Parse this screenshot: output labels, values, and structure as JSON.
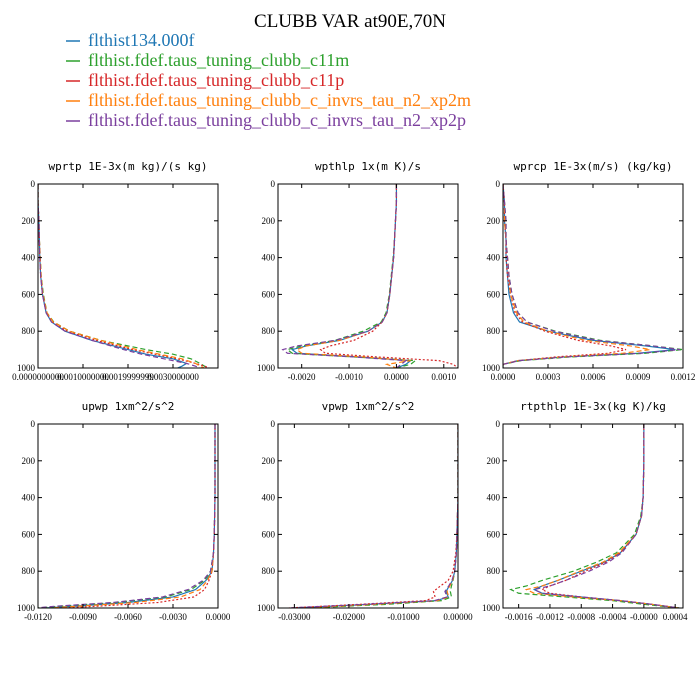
{
  "figure": {
    "title": "CLUBB VAR at90E,70N",
    "series": [
      {
        "name": "flthist134.000f",
        "color": "#1f77b4",
        "dash": "solid"
      },
      {
        "name": "flthist.fdef.taus_tuning_clubb_c11m",
        "color": "#2ca02c",
        "dash": "dashed"
      },
      {
        "name": "flthist.fdef.taus_tuning_clubb_c11p",
        "color": "#d62728",
        "dash": "dotted"
      },
      {
        "name": "flthist.fdef.taus_tuning_clubb_c_invrs_tau_n2_xp2m",
        "color": "#ff7f0e",
        "dash": "dashed"
      },
      {
        "name": "flthist.fdef.taus_tuning_clubb_c_invrs_tau_n2_xp2p",
        "color": "#7b3f9e",
        "dash": "dashed"
      }
    ]
  },
  "chart_data": [
    {
      "type": "line",
      "title": "wprtp  1E-3x(m kg)/(s kg)",
      "xlim": [
        0.0,
        0.004
      ],
      "ylim": [
        1000,
        0
      ],
      "xticks": [
        0.0,
        0.001,
        0.002,
        0.003
      ],
      "xtick_labels": [
        "0.0000000000",
        "0.0010000000",
        "0.0019999999",
        "0.0030000000"
      ],
      "yticks": [
        0,
        200,
        400,
        600,
        800,
        1000
      ],
      "ytick_labels": [
        "0",
        "200",
        "400",
        "600",
        "800",
        "1000"
      ],
      "y": [
        0,
        100,
        200,
        300,
        400,
        500,
        600,
        700,
        750,
        800,
        850,
        900,
        925,
        950,
        975,
        990,
        1000
      ],
      "series": [
        {
          "name": "flthist134.000f",
          "x": [
            0.0,
            0.0,
            2e-05,
            3e-05,
            4e-05,
            6e-05,
            0.0001,
            0.00018,
            0.0003,
            0.0006,
            0.0012,
            0.002,
            0.0024,
            0.003,
            0.0033,
            0.0032,
            0.0031
          ]
        },
        {
          "name": "flthist.fdef.taus_tuning_clubb_c11m",
          "x": [
            0.0,
            0.0,
            2e-05,
            3e-05,
            5e-05,
            7e-05,
            0.00012,
            0.0002,
            0.00035,
            0.0007,
            0.0014,
            0.0024,
            0.003,
            0.0034,
            0.0036,
            0.0037,
            0.0038
          ]
        },
        {
          "name": "flthist.fdef.taus_tuning_clubb_c11p",
          "x": [
            0.0,
            0.0,
            2e-05,
            3e-05,
            4e-05,
            6e-05,
            0.0001,
            0.00019,
            0.00032,
            0.00065,
            0.0013,
            0.0021,
            0.0026,
            0.0031,
            0.0035,
            0.0037,
            0.0038
          ]
        },
        {
          "name": "flthist.fdef.taus_tuning_clubb_c_invrs_tau_n2_xp2m",
          "x": [
            0.0,
            0.0,
            2e-05,
            3e-05,
            5e-05,
            7e-05,
            0.00011,
            0.0002,
            0.00034,
            0.0007,
            0.0014,
            0.0022,
            0.0027,
            0.0032,
            0.0035,
            0.0036,
            0.0037
          ]
        },
        {
          "name": "flthist.fdef.taus_tuning_clubb_c_invrs_tau_n2_xp2p",
          "x": [
            0.0,
            0.0,
            2e-05,
            3e-05,
            4e-05,
            6e-05,
            0.0001,
            0.00018,
            0.0003,
            0.0006,
            0.0012,
            0.0019,
            0.0023,
            0.0028,
            0.0033,
            0.0035,
            0.0036
          ]
        }
      ]
    },
    {
      "type": "line",
      "title": "wpthlp  1x(m K)/s",
      "xlim": [
        -0.0025,
        0.0013
      ],
      "ylim": [
        1000,
        0
      ],
      "xticks": [
        -0.002,
        -0.001,
        0.0,
        0.001
      ],
      "xtick_labels": [
        "-0.0020",
        "-0.0010",
        "0.0000",
        "0.0010"
      ],
      "yticks": [
        0,
        200,
        400,
        600,
        800,
        1000
      ],
      "ytick_labels": [
        "0",
        "200",
        "400",
        "600",
        "800",
        "1000"
      ],
      "y": [
        0,
        100,
        200,
        300,
        400,
        500,
        600,
        700,
        750,
        800,
        850,
        880,
        900,
        920,
        940,
        960,
        980,
        1000
      ],
      "series": [
        {
          "name": "flthist134.000f",
          "x": [
            0.0,
            0.0,
            -2e-05,
            -4e-05,
            -6e-05,
            -0.0001,
            -0.00014,
            -0.0002,
            -0.0003,
            -0.0006,
            -0.0012,
            -0.0019,
            -0.0022,
            -0.0021,
            -0.0008,
            0.0003,
            0.0002,
            0.0
          ]
        },
        {
          "name": "flthist.fdef.taus_tuning_clubb_c11m",
          "x": [
            0.0,
            0.0,
            -2e-05,
            -4e-05,
            -7e-05,
            -0.00011,
            -0.00015,
            -0.00022,
            -0.00032,
            -0.0007,
            -0.0013,
            -0.002,
            -0.0023,
            -0.0022,
            -0.0009,
            0.0004,
            0.0003,
            0.0
          ]
        },
        {
          "name": "flthist.fdef.taus_tuning_clubb_c11p",
          "x": [
            0.0,
            0.0,
            -2e-05,
            -4e-05,
            -6e-05,
            -0.0001,
            -0.00014,
            -0.0002,
            -0.0003,
            -0.0005,
            -0.0009,
            -0.0014,
            -0.0016,
            -0.0015,
            -0.0004,
            0.0009,
            0.0012,
            0.0013
          ]
        },
        {
          "name": "flthist.fdef.taus_tuning_clubb_c_invrs_tau_n2_xp2m",
          "x": [
            0.0,
            0.0,
            -2e-05,
            -4e-05,
            -6e-05,
            -0.0001,
            -0.00014,
            -0.0002,
            -0.0003,
            -0.0006,
            -0.0012,
            -0.0019,
            -0.0021,
            -0.002,
            -0.0007,
            0.0003,
            -0.0002,
            0.0
          ]
        },
        {
          "name": "flthist.fdef.taus_tuning_clubb_c_invrs_tau_n2_xp2p",
          "x": [
            0.0,
            0.0,
            -2e-05,
            -4e-05,
            -6e-05,
            -0.0001,
            -0.00014,
            -0.0002,
            -0.0003,
            -0.0006,
            -0.0013,
            -0.0021,
            -0.0024,
            -0.0023,
            -0.0009,
            0.0002,
            0.0001,
            0.0
          ]
        }
      ]
    },
    {
      "type": "line",
      "title": "wprcp  1E-3x(m/s) (kg/kg)",
      "xlim": [
        0.0,
        0.0012
      ],
      "ylim": [
        1000,
        0
      ],
      "xticks": [
        0.0,
        0.0003,
        0.0006,
        0.0009,
        0.0012
      ],
      "xtick_labels": [
        "0.0000",
        "0.0003",
        "0.0006",
        "0.0009",
        "0.0012"
      ],
      "yticks": [
        0,
        200,
        400,
        600,
        800,
        1000
      ],
      "ytick_labels": [
        "0",
        "200",
        "400",
        "600",
        "800",
        "1000"
      ],
      "y": [
        0,
        100,
        200,
        300,
        400,
        500,
        600,
        700,
        750,
        800,
        850,
        880,
        900,
        920,
        940,
        960,
        980,
        1000
      ],
      "series": [
        {
          "name": "flthist134.000f",
          "x": [
            0.0,
            1e-05,
            1e-05,
            2e-05,
            2e-05,
            3e-05,
            4e-05,
            7e-05,
            0.00011,
            0.0003,
            0.0006,
            0.00095,
            0.00115,
            0.0009,
            0.0004,
            0.0001,
            0.0,
            0.0
          ]
        },
        {
          "name": "flthist.fdef.taus_tuning_clubb_c11m",
          "x": [
            0.0,
            1e-05,
            2e-05,
            2e-05,
            3e-05,
            4e-05,
            6e-05,
            0.0001,
            0.00016,
            0.00035,
            0.00065,
            0.001,
            0.0012,
            0.00095,
            0.00045,
            0.00012,
            0.0,
            0.0
          ]
        },
        {
          "name": "flthist.fdef.taus_tuning_clubb_c11p",
          "x": [
            0.0,
            1e-05,
            1e-05,
            2e-05,
            2e-05,
            3e-05,
            5e-05,
            8e-05,
            0.00013,
            0.00028,
            0.0005,
            0.00072,
            0.00082,
            0.0007,
            0.00035,
            0.0001,
            0.0,
            0.0
          ]
        },
        {
          "name": "flthist.fdef.taus_tuning_clubb_c_invrs_tau_n2_xp2m",
          "x": [
            0.0,
            1e-05,
            1e-05,
            2e-05,
            3e-05,
            4e-05,
            5e-05,
            9e-05,
            0.00014,
            0.0003,
            0.00055,
            0.00085,
            0.00098,
            0.0008,
            0.0004,
            0.0001,
            0.0,
            0.0
          ]
        },
        {
          "name": "flthist.fdef.taus_tuning_clubb_c_invrs_tau_n2_xp2p",
          "x": [
            0.0,
            1e-05,
            2e-05,
            2e-05,
            3e-05,
            4e-05,
            6e-05,
            0.0001,
            0.00016,
            0.00034,
            0.00063,
            0.001,
            0.00118,
            0.00092,
            0.00042,
            0.00011,
            0.0,
            0.0
          ]
        }
      ]
    },
    {
      "type": "line",
      "title": "upwp  1xm^2/s^2",
      "xlim": [
        -0.012,
        0.0
      ],
      "ylim": [
        1000,
        0
      ],
      "xticks": [
        -0.012,
        -0.009,
        -0.006,
        -0.003,
        0.0
      ],
      "xtick_labels": [
        "-0.0120",
        "-0.0090",
        "-0.0060",
        "-0.0030",
        "0.0000"
      ],
      "yticks": [
        0,
        200,
        400,
        600,
        800,
        1000
      ],
      "ytick_labels": [
        "0",
        "200",
        "400",
        "600",
        "800",
        "1000"
      ],
      "y": [
        0,
        200,
        400,
        600,
        700,
        800,
        850,
        900,
        940,
        970,
        990,
        1000
      ],
      "series": [
        {
          "name": "flthist134.000f",
          "x": [
            -0.0002,
            -0.0002,
            -0.0002,
            -0.00025,
            -0.0003,
            -0.0004,
            -0.0008,
            -0.0015,
            -0.003,
            -0.006,
            -0.0095,
            -0.0115
          ]
        },
        {
          "name": "flthist.fdef.taus_tuning_clubb_c11m",
          "x": [
            -0.0002,
            -0.0002,
            -0.0002,
            -0.00025,
            -0.0003,
            -0.0005,
            -0.0009,
            -0.0018,
            -0.0035,
            -0.0068,
            -0.0105,
            -0.012
          ]
        },
        {
          "name": "flthist.fdef.taus_tuning_clubb_c11p",
          "x": [
            -0.0002,
            -0.0002,
            -0.0002,
            -0.00025,
            -0.0003,
            -0.0004,
            -0.0006,
            -0.0009,
            -0.0016,
            -0.004,
            -0.008,
            -0.0105
          ]
        },
        {
          "name": "flthist.fdef.taus_tuning_clubb_c_invrs_tau_n2_xp2m",
          "x": [
            -0.0002,
            -0.0002,
            -0.0002,
            -0.00025,
            -0.0003,
            -0.0004,
            -0.0007,
            -0.0012,
            -0.0025,
            -0.0055,
            -0.0092,
            -0.0112
          ]
        },
        {
          "name": "flthist.fdef.taus_tuning_clubb_c_invrs_tau_n2_xp2p",
          "x": [
            -0.0002,
            -0.0002,
            -0.0002,
            -0.00025,
            -0.0003,
            -0.0005,
            -0.001,
            -0.002,
            -0.0037,
            -0.007,
            -0.0108,
            -0.0122
          ]
        }
      ]
    },
    {
      "type": "line",
      "title": "vpwp  1xm^2/s^2",
      "xlim": [
        -0.033,
        0.0
      ],
      "ylim": [
        1000,
        0
      ],
      "xticks": [
        -0.03,
        -0.02,
        -0.01,
        0.0
      ],
      "xtick_labels": [
        "-0.03000",
        "-0.02000",
        "-0.01000",
        "0.00000"
      ],
      "yticks": [
        0,
        200,
        400,
        600,
        800,
        1000
      ],
      "ytick_labels": [
        "0",
        "200",
        "400",
        "600",
        "800",
        "1000"
      ],
      "y": [
        0,
        200,
        400,
        600,
        700,
        800,
        850,
        880,
        910,
        940,
        960,
        980,
        1000
      ],
      "series": [
        {
          "name": "flthist134.000f",
          "x": [
            0.0,
            0.0,
            0.0,
            -0.0002,
            -0.0003,
            -0.0006,
            -0.001,
            -0.0016,
            -0.0022,
            -0.0018,
            -0.004,
            -0.016,
            -0.03
          ]
        },
        {
          "name": "flthist.fdef.taus_tuning_clubb_c11m",
          "x": [
            0.0,
            0.0,
            0.0,
            -0.0002,
            -0.0003,
            -0.0006,
            -0.0009,
            -0.0012,
            -0.0014,
            -0.0012,
            -0.003,
            -0.013,
            -0.028
          ]
        },
        {
          "name": "flthist.fdef.taus_tuning_clubb_c11p",
          "x": [
            0.0,
            0.0,
            0.0,
            -0.0002,
            -0.0004,
            -0.0009,
            -0.0018,
            -0.0032,
            -0.0045,
            -0.0042,
            -0.006,
            -0.018,
            -0.031
          ]
        },
        {
          "name": "flthist.fdef.taus_tuning_clubb_c_invrs_tau_n2_xp2m",
          "x": [
            0.0,
            0.0,
            0.0,
            -0.0002,
            -0.0003,
            -0.0006,
            -0.001,
            -0.0015,
            -0.002,
            -0.0017,
            -0.0038,
            -0.015,
            -0.029
          ]
        },
        {
          "name": "flthist.fdef.taus_tuning_clubb_c_invrs_tau_n2_xp2p",
          "x": [
            0.0,
            0.0,
            0.0,
            -0.0002,
            -0.0003,
            -0.0006,
            -0.0011,
            -0.0017,
            -0.0024,
            -0.002,
            -0.0043,
            -0.017,
            -0.031
          ]
        }
      ]
    },
    {
      "type": "line",
      "title": "rtpthlp  1E-3x(kg K)/kg",
      "xlim": [
        -0.0018,
        0.0005
      ],
      "ylim": [
        1000,
        0
      ],
      "xticks": [
        -0.0016,
        -0.0012,
        -0.0008,
        -0.0004,
        0.0,
        0.0004
      ],
      "xtick_labels": [
        "-0.0016",
        "-0.0012",
        "-0.0008",
        "-0.0004",
        "-0.0000",
        "0.0004"
      ],
      "yticks": [
        0,
        200,
        400,
        600,
        800,
        1000
      ],
      "ytick_labels": [
        "0",
        "200",
        "400",
        "600",
        "800",
        "1000"
      ],
      "y": [
        0,
        200,
        400,
        500,
        600,
        700,
        750,
        800,
        850,
        880,
        900,
        920,
        940,
        960,
        980,
        1000
      ],
      "series": [
        {
          "name": "flthist134.000f",
          "x": [
            0.0,
            0.0,
            -1e-05,
            -3e-05,
            -0.0001,
            -0.0003,
            -0.0005,
            -0.0008,
            -0.0011,
            -0.0013,
            -0.0014,
            -0.0013,
            -0.0008,
            -0.0003,
            0.0001,
            0.00045
          ]
        },
        {
          "name": "flthist.fdef.taus_tuning_clubb_c11m",
          "x": [
            0.0,
            0.0,
            -1e-05,
            -4e-05,
            -0.00012,
            -0.00035,
            -0.0006,
            -0.0009,
            -0.0013,
            -0.0015,
            -0.0017,
            -0.0016,
            -0.001,
            -0.0004,
            0.0,
            0.00045
          ]
        },
        {
          "name": "flthist.fdef.taus_tuning_clubb_c11p",
          "x": [
            0.0,
            0.0,
            -1e-05,
            -3e-05,
            -0.0001,
            -0.0003,
            -0.00048,
            -0.00075,
            -0.001,
            -0.0012,
            -0.0013,
            -0.0012,
            -0.0008,
            -0.0003,
            0.0001,
            0.00045
          ]
        },
        {
          "name": "flthist.fdef.taus_tuning_clubb_c_invrs_tau_n2_xp2m",
          "x": [
            0.0,
            0.0,
            -1e-05,
            -3e-05,
            -0.0001,
            -0.00032,
            -0.00052,
            -0.00082,
            -0.0011,
            -0.0013,
            -0.0015,
            -0.0014,
            -0.0009,
            -0.0003,
            0.0001,
            0.00045
          ]
        },
        {
          "name": "flthist.fdef.taus_tuning_clubb_c_invrs_tau_n2_xp2p",
          "x": [
            0.0,
            0.0,
            -1e-05,
            -3e-05,
            -0.0001,
            -0.00028,
            -0.00045,
            -0.0007,
            -0.001,
            -0.0012,
            -0.0014,
            -0.0013,
            -0.0008,
            -0.0003,
            0.0001,
            0.00045
          ]
        }
      ]
    }
  ]
}
